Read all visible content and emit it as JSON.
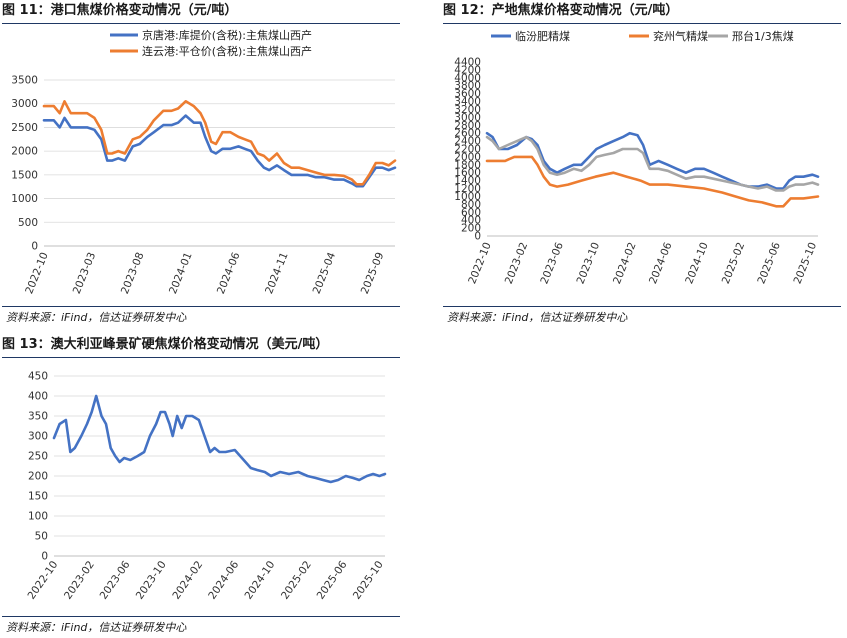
{
  "source": "资料来源：iFind，信达证券研发中心",
  "charts": {
    "c11": {
      "title": "图 11：港口焦煤价格变动情况（元/吨）",
      "chart_data": {
        "type": "line",
        "title": "图 11：港口焦煤价格变动情况（元/吨）",
        "ylim": [
          0,
          3500
        ],
        "yticks": [
          0,
          500,
          1000,
          1500,
          2000,
          2500,
          3000,
          3500
        ],
        "xrange": [
          "2022-10-01",
          "2025-10-20"
        ],
        "xticks": [
          "2022-10",
          "2023-03",
          "2023-08",
          "2024-01",
          "2024-06",
          "2024-11",
          "2025-04",
          "2025-09"
        ],
        "grid": true,
        "legend": "top",
        "series": [
          {
            "name": "京唐港:库提价(含税):主焦煤山西产",
            "color": "#4472c4",
            "x": [
              "2022-10-01",
              "2022-11-01",
              "2022-11-20",
              "2022-12-05",
              "2022-12-25",
              "2023-02-15",
              "2023-03-10",
              "2023-04-01",
              "2023-04-20",
              "2023-05-05",
              "2023-05-25",
              "2023-06-15",
              "2023-07-10",
              "2023-08-01",
              "2023-08-25",
              "2023-09-15",
              "2023-10-15",
              "2023-11-10",
              "2023-12-01",
              "2023-12-25",
              "2024-01-20",
              "2024-02-10",
              "2024-02-25",
              "2024-03-15",
              "2024-03-30",
              "2024-04-20",
              "2024-05-15",
              "2024-06-10",
              "2024-06-30",
              "2024-07-20",
              "2024-08-10",
              "2024-08-30",
              "2024-09-15",
              "2024-10-10",
              "2024-11-01",
              "2024-11-25",
              "2024-12-20",
              "2025-01-15",
              "2025-02-10",
              "2025-03-10",
              "2025-04-10",
              "2025-05-10",
              "2025-06-05",
              "2025-06-20",
              "2025-07-10",
              "2025-07-30",
              "2025-08-20",
              "2025-09-10",
              "2025-09-30",
              "2025-10-20"
            ],
            "y": [
              2650,
              2650,
              2500,
              2700,
              2500,
              2500,
              2450,
              2250,
              1800,
              1800,
              1850,
              1800,
              2100,
              2150,
              2300,
              2400,
              2550,
              2550,
              2600,
              2750,
              2600,
              2600,
              2300,
              2000,
              1950,
              2050,
              2050,
              2100,
              2050,
              2000,
              1800,
              1650,
              1600,
              1700,
              1600,
              1500,
              1500,
              1500,
              1450,
              1450,
              1400,
              1400,
              1320,
              1260,
              1260,
              1450,
              1650,
              1650,
              1600,
              1650
            ]
          },
          {
            "name": "连云港:平仓价(含税):主焦煤山西产",
            "color": "#ed7d31",
            "x": [
              "2022-10-01",
              "2022-11-01",
              "2022-11-20",
              "2022-12-05",
              "2022-12-25",
              "2023-02-15",
              "2023-03-10",
              "2023-04-01",
              "2023-04-20",
              "2023-05-05",
              "2023-05-25",
              "2023-06-15",
              "2023-07-10",
              "2023-08-01",
              "2023-08-25",
              "2023-09-15",
              "2023-10-15",
              "2023-11-10",
              "2023-12-01",
              "2023-12-25",
              "2024-01-20",
              "2024-02-10",
              "2024-02-25",
              "2024-03-15",
              "2024-03-30",
              "2024-04-20",
              "2024-05-15",
              "2024-06-10",
              "2024-06-30",
              "2024-07-20",
              "2024-08-10",
              "2024-08-30",
              "2024-09-15",
              "2024-10-10",
              "2024-11-01",
              "2024-11-25",
              "2024-12-20",
              "2025-01-15",
              "2025-02-10",
              "2025-03-10",
              "2025-04-10",
              "2025-05-10",
              "2025-06-05",
              "2025-06-20",
              "2025-07-10",
              "2025-07-30",
              "2025-08-20",
              "2025-09-10",
              "2025-09-30",
              "2025-10-20"
            ],
            "y": [
              2950,
              2950,
              2800,
              3050,
              2800,
              2800,
              2700,
              2450,
              1950,
              1950,
              2000,
              1950,
              2250,
              2300,
              2450,
              2650,
              2850,
              2850,
              2900,
              3050,
              2950,
              2800,
              2600,
              2200,
              2150,
              2400,
              2400,
              2300,
              2250,
              2200,
              1950,
              1900,
              1800,
              1950,
              1750,
              1650,
              1650,
              1600,
              1550,
              1500,
              1500,
              1480,
              1400,
              1300,
              1300,
              1500,
              1750,
              1750,
              1700,
              1800
            ]
          }
        ]
      }
    },
    "c12": {
      "title": "图 12：产地焦煤价格变动情况（元/吨）",
      "chart_data": {
        "type": "line",
        "title": "图 12：产地焦煤价格变动情况（元/吨）",
        "ylim": [
          0,
          4400
        ],
        "yticks": [
          0,
          200,
          400,
          600,
          800,
          1000,
          1200,
          1400,
          1600,
          1800,
          2000,
          2200,
          2400,
          2600,
          2800,
          3000,
          3200,
          3400,
          3600,
          3800,
          4000,
          4200,
          4400
        ],
        "xrange": [
          "2022-10-01",
          "2025-10-20"
        ],
        "xticks": [
          "2022-10",
          "2023-02",
          "2023-06",
          "2023-10",
          "2024-02",
          "2024-06",
          "2024-10",
          "2025-02",
          "2025-06",
          "2025-10"
        ],
        "grid": false,
        "legend": "top",
        "series": [
          {
            "name": "临汾肥精煤",
            "color": "#4472c4",
            "x": [
              "2022-10-01",
              "2022-10-20",
              "2022-11-10",
              "2022-12-10",
              "2023-01-10",
              "2023-02-10",
              "2023-03-01",
              "2023-03-20",
              "2023-04-10",
              "2023-05-01",
              "2023-05-25",
              "2023-06-20",
              "2023-07-20",
              "2023-08-15",
              "2023-09-10",
              "2023-10-05",
              "2023-11-01",
              "2023-12-01",
              "2024-01-01",
              "2024-01-25",
              "2024-02-20",
              "2024-03-10",
              "2024-04-01",
              "2024-05-01",
              "2024-06-01",
              "2024-07-01",
              "2024-08-01",
              "2024-09-01",
              "2024-10-01",
              "2024-11-01",
              "2024-12-01",
              "2025-01-01",
              "2025-02-01",
              "2025-03-01",
              "2025-04-01",
              "2025-05-01",
              "2025-06-01",
              "2025-06-25",
              "2025-07-15",
              "2025-08-05",
              "2025-09-01",
              "2025-10-01",
              "2025-10-20"
            ],
            "y": [
              2600,
              2500,
              2200,
              2200,
              2300,
              2500,
              2450,
              2300,
              1900,
              1700,
              1600,
              1700,
              1800,
              1800,
              2000,
              2200,
              2300,
              2400,
              2500,
              2600,
              2550,
              2300,
              1800,
              1900,
              1800,
              1700,
              1600,
              1700,
              1700,
              1600,
              1500,
              1400,
              1300,
              1250,
              1250,
              1300,
              1200,
              1200,
              1400,
              1500,
              1500,
              1550,
              1500
            ]
          },
          {
            "name": "兖州气精煤",
            "color": "#ed7d31",
            "x": [
              "2022-10-01",
              "2022-12-01",
              "2023-01-01",
              "2023-03-01",
              "2023-03-20",
              "2023-04-10",
              "2023-05-01",
              "2023-05-25",
              "2023-07-01",
              "2023-08-15",
              "2023-10-01",
              "2023-12-01",
              "2024-01-15",
              "2024-03-01",
              "2024-04-01",
              "2024-06-01",
              "2024-08-01",
              "2024-10-01",
              "2024-12-01",
              "2025-01-15",
              "2025-03-01",
              "2025-04-15",
              "2025-06-01",
              "2025-06-25",
              "2025-07-20",
              "2025-09-01",
              "2025-10-20"
            ],
            "y": [
              1900,
              1900,
              2000,
              2000,
              1800,
              1500,
              1300,
              1250,
              1300,
              1400,
              1500,
              1600,
              1500,
              1400,
              1300,
              1300,
              1250,
              1200,
              1100,
              1000,
              900,
              850,
              750,
              750,
              950,
              950,
              1000
            ]
          },
          {
            "name": "邢台1/3焦煤",
            "color": "#a6a6a6",
            "x": [
              "2022-10-01",
              "2022-10-20",
              "2022-11-10",
              "2022-12-10",
              "2023-01-10",
              "2023-02-10",
              "2023-03-01",
              "2023-03-20",
              "2023-04-10",
              "2023-05-01",
              "2023-05-25",
              "2023-06-20",
              "2023-07-20",
              "2023-08-15",
              "2023-09-10",
              "2023-10-05",
              "2023-11-01",
              "2023-12-01",
              "2024-01-01",
              "2024-01-25",
              "2024-02-20",
              "2024-03-10",
              "2024-04-01",
              "2024-05-01",
              "2024-06-01",
              "2024-07-01",
              "2024-08-01",
              "2024-09-01",
              "2024-10-01",
              "2024-11-01",
              "2024-12-01",
              "2025-01-01",
              "2025-02-01",
              "2025-03-01",
              "2025-04-01",
              "2025-05-01",
              "2025-06-01",
              "2025-06-25",
              "2025-07-15",
              "2025-08-05",
              "2025-09-01",
              "2025-10-01",
              "2025-10-20"
            ],
            "y": [
              2500,
              2400,
              2200,
              2300,
              2400,
              2500,
              2400,
              2200,
              1800,
              1600,
              1550,
              1600,
              1700,
              1650,
              1800,
              2000,
              2050,
              2100,
              2200,
              2200,
              2200,
              2100,
              1700,
              1700,
              1650,
              1550,
              1450,
              1500,
              1500,
              1450,
              1400,
              1350,
              1300,
              1250,
              1200,
              1250,
              1150,
              1150,
              1250,
              1300,
              1300,
              1350,
              1300
            ]
          }
        ]
      }
    },
    "c13": {
      "title": "图 13：澳大利亚峰景矿硬焦煤价格变动情况（美元/吨）",
      "chart_data": {
        "type": "line",
        "title": "图 13：澳大利亚峰景矿硬焦煤价格变动情况（美元/吨）",
        "ylim": [
          0,
          450
        ],
        "yticks": [
          0,
          50,
          100,
          150,
          200,
          250,
          300,
          350,
          400,
          450
        ],
        "xrange": [
          "2022-10-01",
          "2025-10-20"
        ],
        "xticks": [
          "2022-10",
          "2023-02",
          "2023-06",
          "2023-10",
          "2024-02",
          "2024-06",
          "2024-10",
          "2025-02",
          "2025-06",
          "2025-10"
        ],
        "grid": true,
        "legend": "none",
        "series": [
          {
            "name": "",
            "color": "#4472c4",
            "x": [
              "2022-10-01",
              "2022-10-20",
              "2022-11-10",
              "2022-11-25",
              "2022-12-10",
              "2023-01-01",
              "2023-01-20",
              "2023-02-05",
              "2023-02-20",
              "2023-03-10",
              "2023-03-25",
              "2023-04-10",
              "2023-04-25",
              "2023-05-10",
              "2023-05-25",
              "2023-06-15",
              "2023-07-10",
              "2023-08-01",
              "2023-08-20",
              "2023-09-10",
              "2023-09-25",
              "2023-10-10",
              "2023-10-25",
              "2023-11-05",
              "2023-11-20",
              "2023-12-05",
              "2023-12-20",
              "2024-01-10",
              "2024-02-01",
              "2024-02-20",
              "2024-03-10",
              "2024-03-25",
              "2024-04-10",
              "2024-05-01",
              "2024-06-01",
              "2024-07-01",
              "2024-07-25",
              "2024-08-15",
              "2024-09-10",
              "2024-10-01",
              "2024-11-01",
              "2024-12-01",
              "2025-01-01",
              "2025-02-01",
              "2025-03-01",
              "2025-03-25",
              "2025-04-20",
              "2025-05-15",
              "2025-06-10",
              "2025-07-05",
              "2025-07-25",
              "2025-08-20",
              "2025-09-10",
              "2025-10-01",
              "2025-10-20"
            ],
            "y": [
              295,
              330,
              340,
              260,
              270,
              300,
              330,
              360,
              400,
              350,
              330,
              270,
              250,
              235,
              245,
              240,
              250,
              260,
              300,
              330,
              360,
              360,
              330,
              300,
              350,
              320,
              350,
              350,
              340,
              300,
              260,
              270,
              260,
              260,
              265,
              240,
              220,
              215,
              210,
              200,
              210,
              205,
              210,
              200,
              195,
              190,
              185,
              190,
              200,
              195,
              190,
              200,
              205,
              200,
              205
            ]
          }
        ]
      }
    }
  }
}
